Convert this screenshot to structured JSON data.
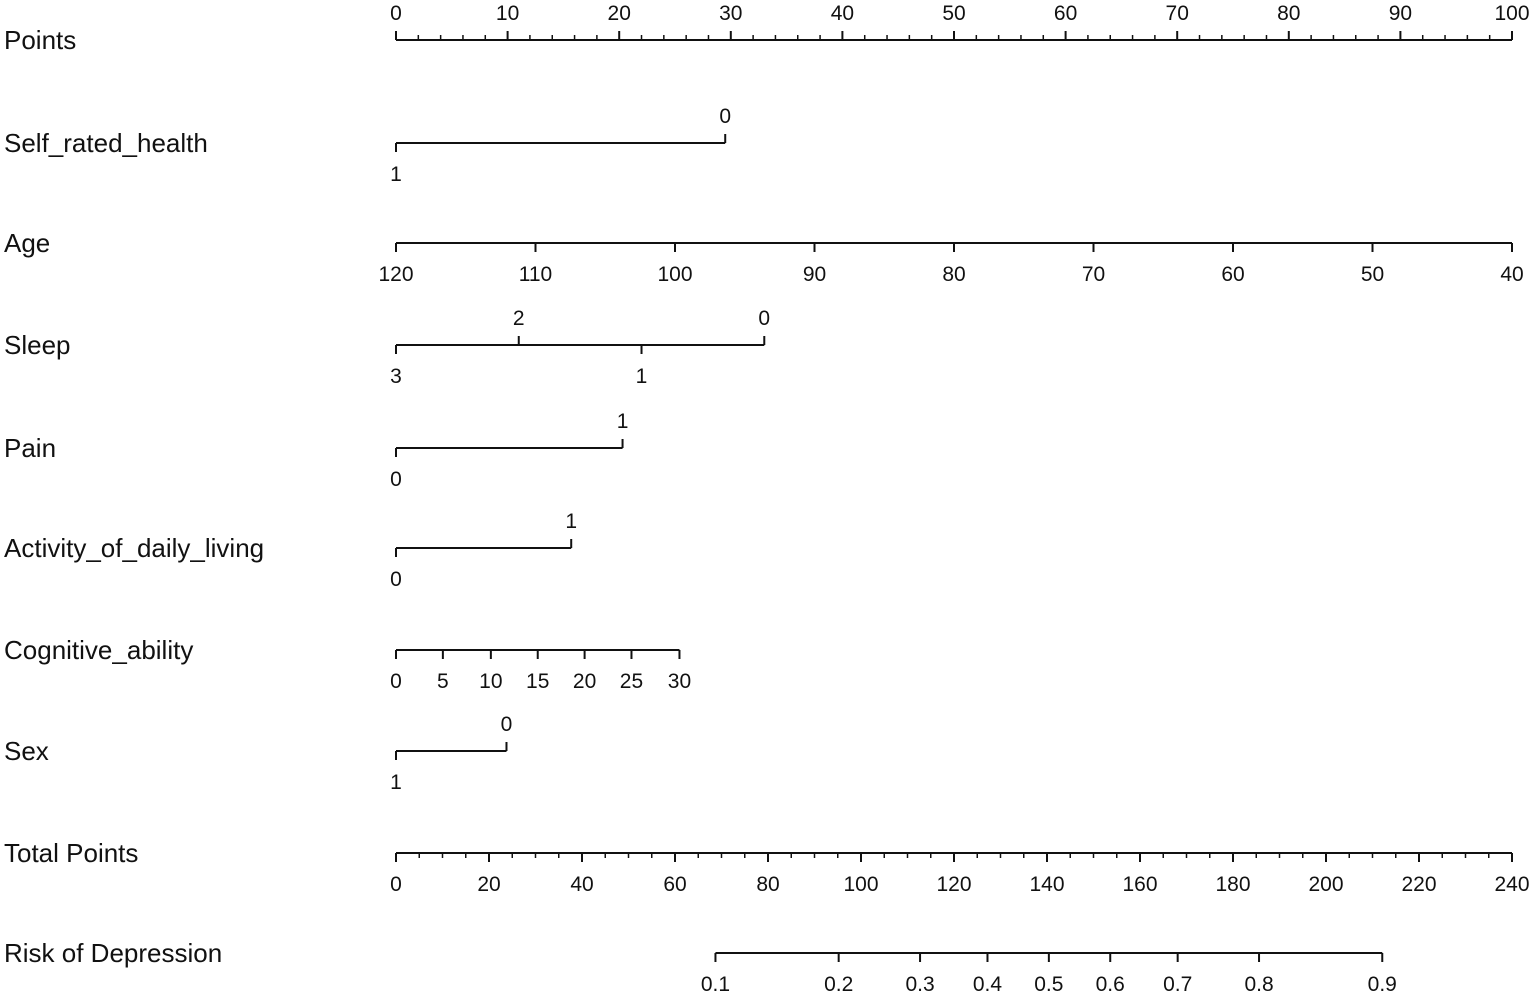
{
  "chart_data": {
    "type": "nomogram",
    "title": "",
    "points_scale": {
      "label": "Points",
      "min": 0,
      "max": 100,
      "ticks": [
        "0",
        "10",
        "20",
        "30",
        "40",
        "50",
        "60",
        "70",
        "80",
        "90",
        "100"
      ]
    },
    "variables": [
      {
        "name": "Self_rated_health",
        "ticks": [
          {
            "label": "0",
            "points": 29.5,
            "side": "above"
          },
          {
            "label": "1",
            "points": 0,
            "side": "below"
          }
        ]
      },
      {
        "name": "Age",
        "ticks": [
          {
            "label": "120",
            "points": 0,
            "side": "below"
          },
          {
            "label": "110",
            "points": 12.5,
            "side": "below"
          },
          {
            "label": "100",
            "points": 25,
            "side": "below"
          },
          {
            "label": "90",
            "points": 37.5,
            "side": "below"
          },
          {
            "label": "80",
            "points": 50,
            "side": "below"
          },
          {
            "label": "70",
            "points": 62.5,
            "side": "below"
          },
          {
            "label": "60",
            "points": 75,
            "side": "below"
          },
          {
            "label": "50",
            "points": 87.5,
            "side": "below"
          },
          {
            "label": "40",
            "points": 100,
            "side": "below"
          }
        ]
      },
      {
        "name": "Sleep",
        "ticks": [
          {
            "label": "2",
            "points": 11,
            "side": "above"
          },
          {
            "label": "0",
            "points": 33,
            "side": "above"
          },
          {
            "label": "3",
            "points": 0,
            "side": "below"
          },
          {
            "label": "1",
            "points": 22,
            "side": "below"
          }
        ]
      },
      {
        "name": "Pain",
        "ticks": [
          {
            "label": "1",
            "points": 20.3,
            "side": "above"
          },
          {
            "label": "0",
            "points": 0,
            "side": "below"
          }
        ]
      },
      {
        "name": "Activity_of_daily_living",
        "ticks": [
          {
            "label": "1",
            "points": 15.7,
            "side": "above"
          },
          {
            "label": "0",
            "points": 0,
            "side": "below"
          }
        ]
      },
      {
        "name": "Cognitive_ability",
        "ticks": [
          {
            "label": "0",
            "points": 0,
            "side": "below"
          },
          {
            "label": "5",
            "points": 4.2,
            "side": "below"
          },
          {
            "label": "10",
            "points": 8.5,
            "side": "below"
          },
          {
            "label": "15",
            "points": 12.7,
            "side": "below"
          },
          {
            "label": "20",
            "points": 16.9,
            "side": "below"
          },
          {
            "label": "25",
            "points": 21.1,
            "side": "below"
          },
          {
            "label": "30",
            "points": 25.4,
            "side": "below"
          }
        ]
      },
      {
        "name": "Sex",
        "ticks": [
          {
            "label": "0",
            "points": 9.9,
            "side": "above"
          },
          {
            "label": "1",
            "points": 0,
            "side": "below"
          }
        ]
      }
    ],
    "total_points_scale": {
      "label": "Total Points",
      "min": 0,
      "max": 240,
      "ticks": [
        "0",
        "20",
        "40",
        "60",
        "80",
        "100",
        "120",
        "140",
        "160",
        "180",
        "200",
        "220",
        "240"
      ]
    },
    "risk_scale": {
      "label": "Risk of Depression",
      "ticks": [
        {
          "label": "0.1",
          "total_points": 68.7
        },
        {
          "label": "0.2",
          "total_points": 95.2
        },
        {
          "label": "0.3",
          "total_points": 112.7
        },
        {
          "label": "0.4",
          "total_points": 127.2
        },
        {
          "label": "0.5",
          "total_points": 140.4
        },
        {
          "label": "0.6",
          "total_points": 153.6
        },
        {
          "label": "0.7",
          "total_points": 168.1
        },
        {
          "label": "0.8",
          "total_points": 185.6
        },
        {
          "label": "0.9",
          "total_points": 212.1
        }
      ]
    }
  }
}
